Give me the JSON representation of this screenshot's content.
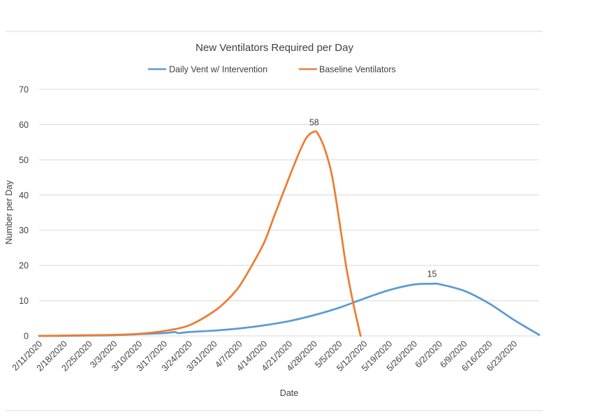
{
  "chart_data": {
    "type": "line",
    "title": "New Ventilators Required per Day",
    "xlabel": "Date",
    "ylabel": "Number per Day",
    "ylim": [
      0,
      70
    ],
    "yticks": [
      0,
      10,
      20,
      30,
      40,
      50,
      60,
      70
    ],
    "xlim": [
      "2/11/2020",
      "6/30/2020"
    ],
    "categories": [
      "2/11/2020",
      "2/18/2020",
      "2/25/2020",
      "3/3/2020",
      "3/10/2020",
      "3/17/2020",
      "3/24/2020",
      "3/31/2020",
      "4/7/2020",
      "4/14/2020",
      "4/21/2020",
      "4/28/2020",
      "5/5/2020",
      "5/12/2020",
      "5/19/2020",
      "5/26/2020",
      "6/2/2020",
      "6/9/2020",
      "6/16/2020",
      "6/23/2020"
    ],
    "grid": true,
    "legend_position": "top",
    "series": [
      {
        "name": "Daily Vent w/ Intervention",
        "color": "#5b9bd5",
        "peak_label": "15",
        "peak_x": "5/31/2020",
        "points": [
          [
            "2/11/2020",
            0
          ],
          [
            "2/18/2020",
            0
          ],
          [
            "2/25/2020",
            0.1
          ],
          [
            "3/3/2020",
            0.2
          ],
          [
            "3/10/2020",
            0.5
          ],
          [
            "3/17/2020",
            0.8
          ],
          [
            "3/20/2020",
            1.1
          ],
          [
            "3/21/2020",
            0.8
          ],
          [
            "3/24/2020",
            1.1
          ],
          [
            "3/31/2020",
            1.5
          ],
          [
            "4/7/2020",
            2.1
          ],
          [
            "4/14/2020",
            3.0
          ],
          [
            "4/21/2020",
            4.2
          ],
          [
            "4/28/2020",
            5.9
          ],
          [
            "5/5/2020",
            8.0
          ],
          [
            "5/12/2020",
            10.6
          ],
          [
            "5/19/2020",
            13.0
          ],
          [
            "5/26/2020",
            14.6
          ],
          [
            "5/31/2020",
            14.8
          ],
          [
            "6/2/2020",
            14.7
          ],
          [
            "6/9/2020",
            12.8
          ],
          [
            "6/16/2020",
            9.2
          ],
          [
            "6/23/2020",
            4.5
          ],
          [
            "6/30/2020",
            0.3
          ]
        ]
      },
      {
        "name": "Baseline Ventilators",
        "color": "#ed7d31",
        "peak_label": "58",
        "peak_x": "4/28/2020",
        "points": [
          [
            "2/11/2020",
            0
          ],
          [
            "2/18/2020",
            0.1
          ],
          [
            "2/25/2020",
            0.2
          ],
          [
            "3/3/2020",
            0.3
          ],
          [
            "3/10/2020",
            0.6
          ],
          [
            "3/17/2020",
            1.4
          ],
          [
            "3/24/2020",
            3.0
          ],
          [
            "3/31/2020",
            7.0
          ],
          [
            "4/4/2020",
            10.5
          ],
          [
            "4/7/2020",
            14.0
          ],
          [
            "4/10/2020",
            19.0
          ],
          [
            "4/14/2020",
            26.5
          ],
          [
            "4/17/2020",
            34.5
          ],
          [
            "4/21/2020",
            45.0
          ],
          [
            "4/24/2020",
            52.5
          ],
          [
            "4/26/2020",
            56.5
          ],
          [
            "4/28/2020",
            58.0
          ],
          [
            "4/29/2020",
            57.5
          ],
          [
            "5/1/2020",
            53.0
          ],
          [
            "5/3/2020",
            45.5
          ],
          [
            "5/5/2020",
            33.0
          ],
          [
            "5/7/2020",
            19.5
          ],
          [
            "5/9/2020",
            9.0
          ],
          [
            "5/11/2020",
            0
          ]
        ]
      }
    ]
  }
}
